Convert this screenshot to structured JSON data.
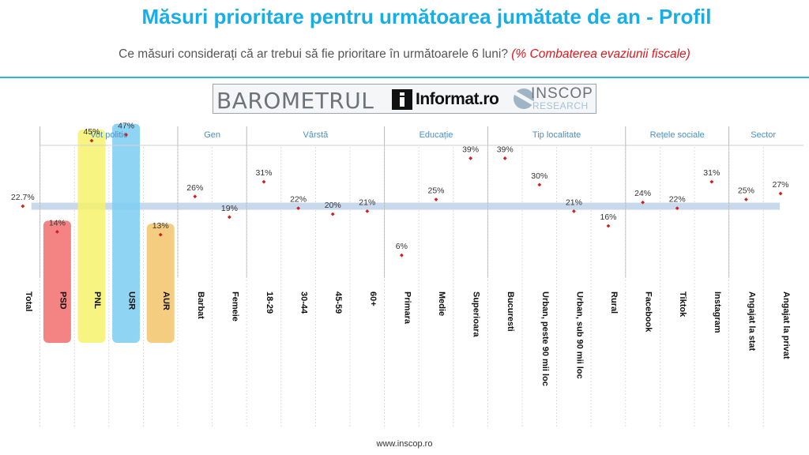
{
  "title": "Măsuri prioritare pentru următoarea jumătate de an - Profil",
  "subtitle": {
    "text": "Ce măsuri considerați că ar trebui să fie prioritare în următoarele 6 luni?",
    "highlight": "(% Combaterea evaziunii fiscale)"
  },
  "logo": {
    "barometru": "BAROMETRUL",
    "informat": "Informat.ro",
    "inscop": "INSCOP",
    "research": "RESEARCH"
  },
  "footer": "www.inscop.ro",
  "colors": {
    "title": "#18aee3",
    "accent_red": "#e0151c",
    "marker": "#d11f1f",
    "average_band": "#c9d9ec",
    "group_label": "#4a8fc4",
    "PSD": "#f26f6f",
    "PNL": "#f7f26b",
    "USR": "#7dcdf2",
    "AUR": "#f3c46a"
  },
  "chart_data": {
    "type": "scatter",
    "title": "Măsuri prioritare pentru următoarea jumătate de an - Profil",
    "unit": "%",
    "average": 22.7,
    "groups": [
      {
        "name": "",
        "categories": [
          "Total"
        ]
      },
      {
        "name": "Vot politic",
        "categories": [
          "PSD",
          "PNL",
          "USR",
          "AUR"
        ]
      },
      {
        "name": "Gen",
        "categories": [
          "Barbat",
          "Femeie"
        ]
      },
      {
        "name": "Vârstă",
        "categories": [
          "18-29",
          "30-44",
          "45-59",
          "60+"
        ]
      },
      {
        "name": "Educație",
        "categories": [
          "Primara",
          "Medie",
          "Superioara"
        ]
      },
      {
        "name": "Tip localitate",
        "categories": [
          "Bucuresti",
          "Urban, peste 90 mii loc",
          "Urban, sub 90 mii loc",
          "Rural"
        ]
      },
      {
        "name": "Rețele sociale",
        "categories": [
          "Facebook",
          "Tiktok",
          "Instagram"
        ]
      },
      {
        "name": "Sector",
        "categories": [
          "Angajat la stat",
          "Angajat la privat"
        ]
      }
    ],
    "categories": [
      "Total",
      "PSD",
      "PNL",
      "USR",
      "AUR",
      "Barbat",
      "Femeie",
      "18-29",
      "30-44",
      "45-59",
      "60+",
      "Primara",
      "Medie",
      "Superioara",
      "Bucuresti",
      "Urban, peste 90 mii loc",
      "Urban, sub 90 mii loc",
      "Rural",
      "Facebook",
      "Tiktok",
      "Instagram",
      "Angajat la stat",
      "Angajat la privat"
    ],
    "values": [
      22.7,
      14,
      45,
      47,
      13,
      26,
      19,
      31,
      22,
      20,
      21,
      6,
      25,
      39,
      39,
      30,
      21,
      16,
      24,
      22,
      31,
      25,
      27
    ],
    "value_labels": [
      "22.7%",
      "14%",
      "45%",
      "47%",
      "13%",
      "26%",
      "19%",
      "31%",
      "22%",
      "20%",
      "21%",
      "6%",
      "25%",
      "39%",
      "39%",
      "30%",
      "21%",
      "16%",
      "24%",
      "22%",
      "31%",
      "25%",
      "27%"
    ],
    "party_highlight": [
      "PSD",
      "PNL",
      "USR",
      "AUR"
    ],
    "grid": false,
    "legend": "none"
  }
}
